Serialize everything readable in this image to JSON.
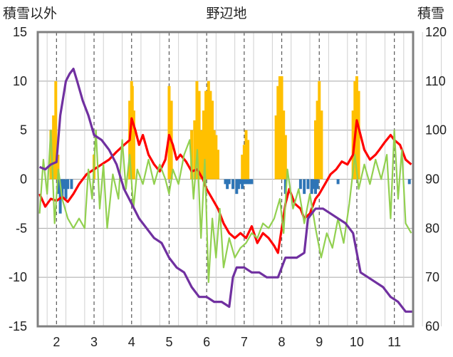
{
  "chart_data": {
    "type": "line",
    "title": "野辺地",
    "ylabel_left": "積雪以外",
    "ylabel_right": "積雪",
    "x_ticks": [
      "2",
      "3",
      "4",
      "5",
      "6",
      "7",
      "8",
      "9",
      "10",
      "11"
    ],
    "y_left_ticks": [
      "15",
      "10",
      "5",
      "0",
      "-5",
      "-10",
      "-15"
    ],
    "y_right_ticks": [
      "120",
      "110",
      "100",
      "90",
      "80",
      "70",
      "60"
    ],
    "ylim_left": [
      -15,
      15
    ],
    "ylim_right": [
      60,
      120
    ],
    "xlim": [
      1.5,
      11.5
    ],
    "grid": true,
    "colors": {
      "red": "#ff0000",
      "green": "#92d050",
      "purple": "#7030a0",
      "bar_positive": "#ffc000",
      "bar_negative": "#2e75b6"
    },
    "series": [
      {
        "color": "#ff0000",
        "axis": "left",
        "points": [
          [
            1.55,
            -1.5
          ],
          [
            1.7,
            -2.8
          ],
          [
            1.85,
            -2.0
          ],
          [
            2.0,
            -2.2
          ],
          [
            2.15,
            -1.8
          ],
          [
            2.3,
            -2.3
          ],
          [
            2.45,
            -1.5
          ],
          [
            2.6,
            -0.5
          ],
          [
            2.8,
            0.5
          ],
          [
            3.0,
            1.0
          ],
          [
            3.2,
            1.5
          ],
          [
            3.4,
            2.0
          ],
          [
            3.6,
            2.8
          ],
          [
            3.8,
            3.5
          ],
          [
            3.95,
            4.0
          ],
          [
            4.0,
            6.2
          ],
          [
            4.1,
            5.0
          ],
          [
            4.2,
            3.5
          ],
          [
            4.3,
            4.5
          ],
          [
            4.45,
            2.5
          ],
          [
            4.6,
            1.5
          ],
          [
            4.75,
            0.8
          ],
          [
            4.9,
            2.0
          ],
          [
            5.0,
            4.5
          ],
          [
            5.1,
            3.5
          ],
          [
            5.2,
            2.0
          ],
          [
            5.3,
            2.5
          ],
          [
            5.45,
            1.8
          ],
          [
            5.6,
            0.8
          ],
          [
            5.75,
            1.0
          ],
          [
            5.9,
            0.0
          ],
          [
            6.0,
            -1.0
          ],
          [
            6.15,
            -2.0
          ],
          [
            6.3,
            -3.0
          ],
          [
            6.45,
            -4.5
          ],
          [
            6.6,
            -5.5
          ],
          [
            6.75,
            -6.0
          ],
          [
            6.9,
            -5.5
          ],
          [
            7.05,
            -6.0
          ],
          [
            7.2,
            -4.8
          ],
          [
            7.35,
            -6.5
          ],
          [
            7.5,
            -5.5
          ],
          [
            7.65,
            -6.0
          ],
          [
            7.8,
            -6.8
          ],
          [
            7.9,
            -7.5
          ],
          [
            8.0,
            -5.0
          ],
          [
            8.1,
            -2.5
          ],
          [
            8.2,
            -1.0
          ],
          [
            8.35,
            -2.5
          ],
          [
            8.5,
            -3.0
          ],
          [
            8.6,
            -4.0
          ],
          [
            8.75,
            -3.5
          ],
          [
            8.9,
            -2.0
          ],
          [
            9.0,
            -1.5
          ],
          [
            9.15,
            -0.5
          ],
          [
            9.3,
            0.5
          ],
          [
            9.45,
            1.0
          ],
          [
            9.6,
            1.8
          ],
          [
            9.75,
            1.5
          ],
          [
            9.9,
            2.5
          ],
          [
            10.0,
            6.0
          ],
          [
            10.1,
            4.5
          ],
          [
            10.2,
            3.0
          ],
          [
            10.35,
            2.0
          ],
          [
            10.5,
            2.5
          ],
          [
            10.6,
            3.0
          ],
          [
            10.75,
            3.8
          ],
          [
            10.9,
            4.5
          ],
          [
            11.0,
            4.0
          ],
          [
            11.15,
            3.5
          ],
          [
            11.3,
            2.0
          ],
          [
            11.45,
            1.5
          ]
        ]
      },
      {
        "color": "#92d050",
        "axis": "left",
        "points": [
          [
            1.55,
            -3.5
          ],
          [
            1.65,
            2.0
          ],
          [
            1.75,
            -1.5
          ],
          [
            1.85,
            5.0
          ],
          [
            1.95,
            -4.5
          ],
          [
            2.05,
            1.0
          ],
          [
            2.15,
            -2.0
          ],
          [
            2.3,
            -4.0
          ],
          [
            2.45,
            -5.0
          ],
          [
            2.6,
            -4.0
          ],
          [
            2.75,
            -5.0
          ],
          [
            2.85,
            1.0
          ],
          [
            2.95,
            -2.0
          ],
          [
            3.05,
            5.0
          ],
          [
            3.15,
            -3.0
          ],
          [
            3.25,
            1.5
          ],
          [
            3.35,
            -5.0
          ],
          [
            3.5,
            0.5
          ],
          [
            3.65,
            -2.0
          ],
          [
            3.75,
            4.0
          ],
          [
            3.85,
            -1.0
          ],
          [
            3.95,
            2.5
          ],
          [
            4.05,
            -3.0
          ],
          [
            4.15,
            1.0
          ],
          [
            4.3,
            -0.5
          ],
          [
            4.45,
            2.0
          ],
          [
            4.6,
            -0.5
          ],
          [
            4.75,
            1.5
          ],
          [
            4.9,
            0.0
          ],
          [
            5.0,
            -1.5
          ],
          [
            5.1,
            1.0
          ],
          [
            5.25,
            -0.5
          ],
          [
            5.4,
            2.5
          ],
          [
            5.55,
            4.0
          ],
          [
            5.65,
            -2.0
          ],
          [
            5.75,
            3.0
          ],
          [
            5.85,
            -6.0
          ],
          [
            5.95,
            2.0
          ],
          [
            6.05,
            -10.5
          ],
          [
            6.15,
            -4.0
          ],
          [
            6.25,
            -8.0
          ],
          [
            6.35,
            -3.0
          ],
          [
            6.45,
            -9.0
          ],
          [
            6.6,
            -6.0
          ],
          [
            6.75,
            -8.0
          ],
          [
            6.9,
            -7.0
          ],
          [
            7.05,
            -6.5
          ],
          [
            7.2,
            -5.5
          ],
          [
            7.35,
            -6.0
          ],
          [
            7.5,
            -4.5
          ],
          [
            7.65,
            -5.0
          ],
          [
            7.8,
            -4.0
          ],
          [
            7.95,
            -2.0
          ],
          [
            8.05,
            -5.5
          ],
          [
            8.15,
            1.0
          ],
          [
            8.3,
            -3.0
          ],
          [
            8.45,
            -1.0
          ],
          [
            8.6,
            -4.5
          ],
          [
            8.75,
            -1.5
          ],
          [
            8.9,
            -5.0
          ],
          [
            9.05,
            -8.0
          ],
          [
            9.2,
            -5.5
          ],
          [
            9.35,
            -7.0
          ],
          [
            9.5,
            -4.0
          ],
          [
            9.65,
            -6.5
          ],
          [
            9.8,
            -2.5
          ],
          [
            9.95,
            2.5
          ],
          [
            10.05,
            -1.0
          ],
          [
            10.2,
            1.5
          ],
          [
            10.35,
            -0.5
          ],
          [
            10.5,
            2.0
          ],
          [
            10.65,
            0.0
          ],
          [
            10.8,
            2.5
          ],
          [
            10.9,
            -4.0
          ],
          [
            11.0,
            5.0
          ],
          [
            11.1,
            -2.0
          ],
          [
            11.2,
            3.0
          ],
          [
            11.3,
            -4.5
          ],
          [
            11.45,
            -5.5
          ]
        ]
      },
      {
        "color": "#7030a0",
        "axis": "right",
        "points": [
          [
            1.55,
            92.5
          ],
          [
            1.7,
            92
          ],
          [
            1.85,
            93
          ],
          [
            2.0,
            93.5
          ],
          [
            2.1,
            103
          ],
          [
            2.25,
            110
          ],
          [
            2.35,
            111.5
          ],
          [
            2.45,
            112.5
          ],
          [
            2.55,
            110
          ],
          [
            2.7,
            106
          ],
          [
            2.85,
            103
          ],
          [
            3.0,
            99
          ],
          [
            3.2,
            98
          ],
          [
            3.4,
            96
          ],
          [
            3.6,
            93
          ],
          [
            3.8,
            88
          ],
          [
            4.0,
            85
          ],
          [
            4.2,
            82
          ],
          [
            4.4,
            80
          ],
          [
            4.6,
            78
          ],
          [
            4.8,
            77
          ],
          [
            5.0,
            74
          ],
          [
            5.2,
            72
          ],
          [
            5.4,
            71
          ],
          [
            5.6,
            68
          ],
          [
            5.8,
            66
          ],
          [
            6.0,
            66
          ],
          [
            6.2,
            65
          ],
          [
            6.4,
            65
          ],
          [
            6.6,
            64
          ],
          [
            6.7,
            70
          ],
          [
            6.8,
            72
          ],
          [
            7.0,
            72
          ],
          [
            7.2,
            71
          ],
          [
            7.4,
            71
          ],
          [
            7.6,
            70
          ],
          [
            7.8,
            70
          ],
          [
            7.9,
            70
          ],
          [
            8.1,
            74
          ],
          [
            8.4,
            74
          ],
          [
            8.6,
            75
          ],
          [
            8.7,
            82
          ],
          [
            8.9,
            84
          ],
          [
            9.1,
            84
          ],
          [
            9.3,
            83
          ],
          [
            9.5,
            82
          ],
          [
            9.7,
            81
          ],
          [
            9.9,
            79
          ],
          [
            10.1,
            71
          ],
          [
            10.3,
            70
          ],
          [
            10.5,
            69
          ],
          [
            10.7,
            68
          ],
          [
            10.9,
            66
          ],
          [
            11.1,
            65
          ],
          [
            11.3,
            63
          ],
          [
            11.5,
            63
          ]
        ]
      }
    ],
    "bars": [
      {
        "color": "#ffc000",
        "axis": "left",
        "x": [
          1.85,
          1.92,
          1.98,
          2.04,
          3.0,
          3.95,
          4.0,
          4.02,
          4.06,
          5.0,
          5.06,
          5.6,
          5.68,
          5.74,
          5.8,
          5.86,
          5.92,
          5.98,
          6.05,
          6.1,
          6.15,
          6.2,
          6.25,
          6.3,
          6.95,
          7.0,
          7.05,
          7.1,
          7.85,
          7.9,
          7.95,
          8.0,
          8.05,
          8.1,
          8.9,
          8.95,
          9.0,
          9.06,
          9.9,
          9.95,
          10.0,
          10.05
        ],
        "y": [
          5.0,
          6.5,
          10.0,
          2.5,
          2.5,
          8.0,
          10.0,
          9.5,
          7.0,
          9.5,
          8.0,
          5.0,
          6.0,
          10.0,
          9.0,
          5.0,
          7.0,
          9.0,
          10.0,
          9.0,
          8.0,
          5.0,
          4.5,
          3.0,
          2.5,
          3.5,
          5.0,
          4.0,
          6.5,
          9.5,
          10.5,
          10.5,
          7.0,
          4.5,
          6.0,
          8.0,
          10.0,
          7.0,
          7.0,
          10.0,
          10.5,
          9.0
        ]
      },
      {
        "color": "#2e75b6",
        "axis": "left",
        "x": [
          2.05,
          2.1,
          2.15,
          2.2,
          2.25,
          2.3,
          2.4,
          6.5,
          6.55,
          6.6,
          6.7,
          6.8,
          6.85,
          6.9,
          6.95,
          7.0,
          7.05,
          7.1,
          7.15,
          7.2,
          8.1,
          8.5,
          8.6,
          8.7,
          8.8,
          8.85,
          8.9,
          8.95,
          9.5,
          11.4
        ],
        "y": [
          -1.5,
          -3.5,
          -2.0,
          -1.0,
          -2.0,
          -1.0,
          -1.0,
          -0.5,
          -1.0,
          -0.5,
          -1.0,
          -1.5,
          -1.0,
          -0.5,
          -1.0,
          -0.5,
          -0.5,
          -0.5,
          -0.5,
          -0.5,
          -1.5,
          -1.0,
          -1.5,
          -1.0,
          -1.5,
          -1.0,
          -1.5,
          -1.0,
          -0.5,
          -0.5
        ]
      }
    ]
  }
}
